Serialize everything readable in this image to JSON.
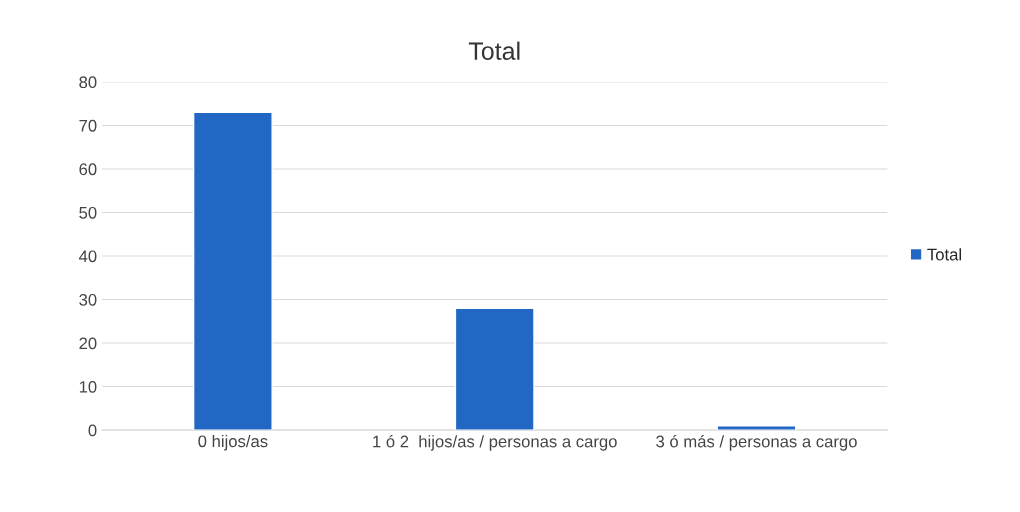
{
  "chart_data": {
    "type": "bar",
    "title": "Total",
    "categories": [
      "0 hijos/as",
      "1 ó 2  hijos/as / personas a cargo",
      "3 ó más / personas a cargo"
    ],
    "series": [
      {
        "name": "Total",
        "color": "#2367c4",
        "values": [
          73,
          28,
          1
        ]
      }
    ],
    "ylim": [
      0,
      80
    ],
    "yticks": [
      0,
      10,
      20,
      30,
      40,
      50,
      60,
      70,
      80
    ],
    "grid": "y",
    "legend": "right"
  }
}
